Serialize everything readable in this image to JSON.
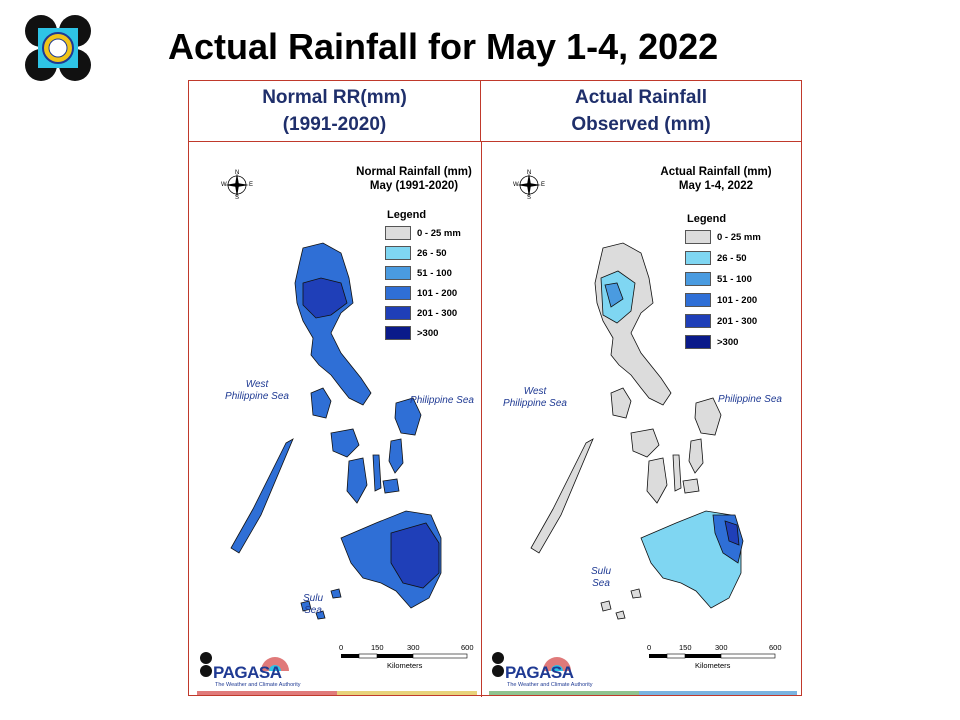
{
  "title": "Actual Rainfall for May 1-4, 2022",
  "colors": {
    "frame": "#c0392b",
    "header_text": "#1f2f6b",
    "class_0_25": "#dcdcdc",
    "class_26_50": "#7fd6f2",
    "class_51_100": "#4a9be0",
    "class_101_200": "#2f6fd6",
    "class_201_300": "#1f3fb8",
    "class_300_plus": "#0a1a8a",
    "strip": [
      "#e07a7a",
      "#e8d27a",
      "#8fc38f",
      "#7ab3e0"
    ]
  },
  "headers": {
    "left": [
      "Normal RR(mm)",
      "(1991-2020)"
    ],
    "right": [
      "Actual Rainfall",
      "Observed  (mm)"
    ]
  },
  "maps": [
    {
      "title": [
        "Normal Rainfall (mm)",
        "May (1991-2020)"
      ],
      "dominant_class": "101 - 200",
      "legend": {
        "title": "Legend",
        "items": [
          "0 - 25 mm",
          "26 - 50",
          "51 - 100",
          "101 - 200",
          "201 - 300",
          ">300"
        ]
      },
      "seas": {
        "west": [
          "West",
          "Philippine Sea"
        ],
        "east": "Philippine Sea",
        "south": "Sulu Sea"
      },
      "scale": {
        "ticks": [
          "0",
          "150",
          "300",
          "600"
        ],
        "unit": "Kilometers"
      },
      "compass": {
        "n": "N",
        "s": "S",
        "e": "E",
        "w": "W"
      },
      "agency": {
        "name": "PAGASA",
        "tagline": "The Weather and Climate Authority"
      }
    },
    {
      "title": [
        "Actual Rainfall (mm)",
        "May 1-4, 2022"
      ],
      "dominant_class": "0 - 25 mm",
      "legend": {
        "title": "Legend",
        "items": [
          "0 - 25 mm",
          "26 - 50",
          "51 - 100",
          "101 - 200",
          "201 - 300",
          ">300"
        ]
      },
      "seas": {
        "west": [
          "West",
          "Philippine Sea"
        ],
        "east": "Philippine Sea",
        "south": "Sulu Sea"
      },
      "scale": {
        "ticks": [
          "0",
          "150",
          "300",
          "600"
        ],
        "unit": "Kilometers"
      },
      "compass": {
        "n": "N",
        "s": "S",
        "e": "E",
        "w": "W"
      },
      "agency": {
        "name": "PAGASA",
        "tagline": "The Weather and Climate Authority"
      }
    }
  ]
}
